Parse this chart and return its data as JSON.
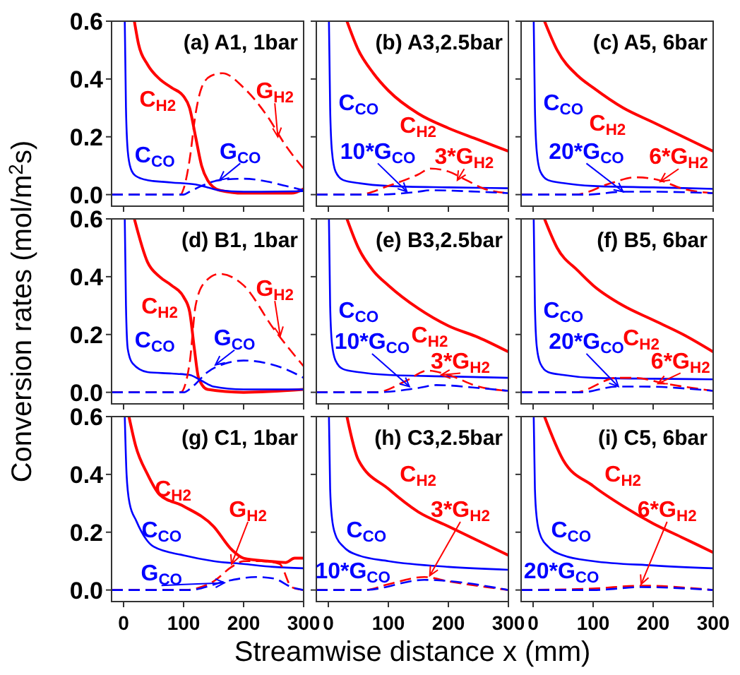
{
  "chart_data": [
    {
      "type": "line",
      "title": "(a) A1, 1bar",
      "xlim": [
        -20,
        300
      ],
      "ylim": [
        -0.04,
        0.6
      ],
      "xticks": [
        {
          "value": 0,
          "label": null
        },
        {
          "value": 100,
          "label": null
        },
        {
          "value": 200,
          "label": null
        },
        {
          "value": 300,
          "label": null
        }
      ],
      "yticks": [
        {
          "value": 0,
          "label": "0.0"
        },
        0.2,
        0.4,
        0.6
      ],
      "tick_labels": "y",
      "series": [
        {
          "color": "#ff0000",
          "line_style": "solid",
          "x": [
            18,
            25,
            40,
            60,
            80,
            100,
            110,
            120,
            130,
            140,
            160,
            200,
            280,
            300
          ],
          "values": [
            0.6,
            0.52,
            0.45,
            0.4,
            0.37,
            0.34,
            0.3,
            0.2,
            0.1,
            0.05,
            0.015,
            0.005,
            0.005,
            0.02
          ]
        },
        {
          "color": "#0000ff",
          "line_style": "solid",
          "x": [
            2,
            4,
            7,
            12,
            20,
            40,
            80,
            120,
            140,
            160,
            200,
            300
          ],
          "values": [
            0.6,
            0.3,
            0.15,
            0.09,
            0.065,
            0.05,
            0.042,
            0.035,
            0.025,
            0.015,
            0.01,
            0.012
          ]
        },
        {
          "color": "#ff0000",
          "line_style": "dashed",
          "x": [
            -20,
            95,
            100,
            110,
            120,
            130,
            145,
            165,
            200,
            240,
            270,
            300
          ],
          "values": [
            0,
            0,
            0.02,
            0.12,
            0.28,
            0.37,
            0.41,
            0.42,
            0.37,
            0.27,
            0.17,
            0.09
          ]
        },
        {
          "color": "#0000ff",
          "line_style": "dashed",
          "x": [
            -20,
            100,
            110,
            130,
            160,
            200,
            240,
            270,
            300
          ],
          "values": [
            0,
            0,
            0.01,
            0.03,
            0.05,
            0.055,
            0.045,
            0.03,
            0.015
          ]
        }
      ],
      "annotations": [
        "C$_{H2}$",
        "C$_{CO}$",
        {
          "text": "G$_{H2}$",
          "x": 257,
          "y": 0.2
        },
        {
          "text": "G$_{CO}$",
          "x": 160,
          "y": 0.05
        }
      ]
    },
    {
      "type": "line",
      "title": "(b) A3,2.5bar",
      "xlim": [
        -20,
        300
      ],
      "ylim": [
        -0.04,
        0.6
      ],
      "xticks": [
        {
          "value": 0,
          "label": null
        },
        {
          "value": 100,
          "label": null
        },
        {
          "value": 200,
          "label": null
        },
        {
          "value": 300,
          "label": null
        }
      ],
      "yticks": [
        {
          "value": 0,
          "label": null
        },
        {
          "value": 0.2,
          "label": null
        },
        {
          "value": 0.4,
          "label": null
        },
        {
          "value": 0.6,
          "label": null
        }
      ],
      "tick_labels": false,
      "series": [
        {
          "color": "#ff0000",
          "line_style": "solid",
          "x": [
            31,
            50,
            75,
            100,
            150,
            200,
            250,
            300
          ],
          "values": [
            0.6,
            0.5,
            0.42,
            0.36,
            0.28,
            0.23,
            0.19,
            0.15
          ]
        },
        {
          "color": "#0000ff",
          "line_style": "solid",
          "x": [
            1,
            3,
            6,
            12,
            25,
            50,
            100,
            200,
            300
          ],
          "values": [
            0.6,
            0.3,
            0.15,
            0.08,
            0.05,
            0.04,
            0.03,
            0.025,
            0.022
          ]
        },
        {
          "color": "#ff0000",
          "line_style": "dashed",
          "x": [
            -20,
            50,
            100,
            150,
            170,
            200,
            230,
            260,
            300
          ],
          "values": [
            0,
            0,
            0.03,
            0.07,
            0.09,
            0.08,
            0.05,
            0.02,
            0.005
          ]
        },
        {
          "color": "#0000ff",
          "line_style": "dashed",
          "x": [
            -20,
            80,
            150,
            170,
            250,
            300
          ],
          "values": [
            0,
            0,
            0.01,
            0.015,
            0.01,
            0.005
          ]
        }
      ],
      "annotations": [
        "C$_{H2}$",
        "C$_{CO}$",
        {
          "text": "3*G$_{H2}$",
          "x": 215,
          "y": 0.05
        },
        {
          "text": "10*G$_{CO}$",
          "x": 131,
          "y": 0.01
        }
      ]
    },
    {
      "type": "line",
      "title": "(c) A5, 6bar",
      "xlim": [
        -20,
        300
      ],
      "ylim": [
        -0.04,
        0.6
      ],
      "xticks": [
        {
          "value": 0,
          "label": null
        },
        {
          "value": 100,
          "label": null
        },
        {
          "value": 200,
          "label": null
        },
        {
          "value": 300,
          "label": null
        }
      ],
      "yticks": [
        {
          "value": 0,
          "label": null
        },
        {
          "value": 0.2,
          "label": null
        },
        {
          "value": 0.4,
          "label": null
        },
        {
          "value": 0.6,
          "label": null
        }
      ],
      "tick_labels": false,
      "series": [
        {
          "color": "#ff0000",
          "line_style": "solid",
          "x": [
            19,
            40,
            75,
            100,
            150,
            200,
            250,
            300
          ],
          "values": [
            0.6,
            0.5,
            0.41,
            0.37,
            0.3,
            0.25,
            0.2,
            0.15
          ]
        },
        {
          "color": "#0000ff",
          "line_style": "solid",
          "x": [
            1,
            3,
            6,
            12,
            25,
            50,
            100,
            200,
            300
          ],
          "values": [
            0.6,
            0.3,
            0.15,
            0.08,
            0.05,
            0.04,
            0.03,
            0.025,
            0.02
          ]
        },
        {
          "color": "#ff0000",
          "line_style": "dashed",
          "x": [
            -20,
            70,
            130,
            170,
            210,
            250,
            300
          ],
          "values": [
            0,
            0,
            0.04,
            0.06,
            0.05,
            0.02,
            0.005
          ]
        },
        {
          "color": "#0000ff",
          "line_style": "dashed",
          "x": [
            -20,
            90,
            150,
            200,
            300
          ],
          "values": [
            0,
            0,
            0.01,
            0.01,
            0.005
          ]
        }
      ],
      "annotations": [
        "C$_{H2}$",
        "C$_{CO}$",
        {
          "text": "6*G$_{H2}$",
          "x": 212,
          "y": 0.045
        },
        {
          "text": "20*G$_{CO}$",
          "x": 150,
          "y": 0.01
        }
      ]
    },
    {
      "type": "line",
      "title": "(d) B1, 1bar",
      "ylabel": "Conversion rates (mol/m$^{2}$s)",
      "xlim": [
        -20,
        300
      ],
      "ylim": [
        -0.04,
        0.6
      ],
      "xticks": [
        {
          "value": 0,
          "label": null
        },
        {
          "value": 100,
          "label": null
        },
        {
          "value": 200,
          "label": null
        },
        {
          "value": 300,
          "label": null
        }
      ],
      "yticks": [
        {
          "value": 0,
          "label": "0.0"
        },
        0.2,
        0.4,
        0.6
      ],
      "tick_labels": "y",
      "series": [
        {
          "color": "#ff0000",
          "line_style": "solid",
          "x": [
            18,
            40,
            60,
            80,
            100,
            110,
            118,
            125,
            140,
            200,
            300
          ],
          "values": [
            0.6,
            0.45,
            0.4,
            0.37,
            0.33,
            0.28,
            0.15,
            0.05,
            0.01,
            0,
            0.01
          ]
        },
        {
          "color": "#0000ff",
          "line_style": "solid",
          "x": [
            2,
            4,
            7,
            15,
            40,
            80,
            110,
            130,
            150,
            200,
            300
          ],
          "values": [
            0.6,
            0.3,
            0.15,
            0.1,
            0.07,
            0.065,
            0.06,
            0.04,
            0.02,
            0.01,
            0.01
          ]
        },
        {
          "color": "#ff0000",
          "line_style": "dashed",
          "x": [
            -20,
            95,
            110,
            120,
            135,
            160,
            200,
            250,
            300
          ],
          "values": [
            0,
            0,
            0.1,
            0.3,
            0.38,
            0.41,
            0.37,
            0.22,
            0.09
          ]
        },
        {
          "color": "#0000ff",
          "line_style": "dashed",
          "x": [
            -20,
            100,
            115,
            140,
            170,
            200,
            240,
            270,
            300
          ],
          "values": [
            0,
            0,
            0.02,
            0.07,
            0.1,
            0.11,
            0.1,
            0.08,
            0.05
          ]
        }
      ],
      "annotations": [
        "C$_{H2}$",
        "C$_{CO}$",
        {
          "text": "G$_{H2}$",
          "x": 261,
          "y": 0.195
        },
        {
          "text": "G$_{CO}$",
          "x": 153,
          "y": 0.095
        }
      ]
    },
    {
      "type": "line",
      "title": "(e) B3,2.5bar",
      "xlim": [
        -20,
        300
      ],
      "ylim": [
        -0.04,
        0.6
      ],
      "xticks": [
        {
          "value": 0,
          "label": null
        },
        {
          "value": 100,
          "label": null
        },
        {
          "value": 200,
          "label": null
        },
        {
          "value": 300,
          "label": null
        }
      ],
      "yticks": [
        {
          "value": 0,
          "label": null
        },
        {
          "value": 0.2,
          "label": null
        },
        {
          "value": 0.4,
          "label": null
        },
        {
          "value": 0.6,
          "label": null
        }
      ],
      "tick_labels": false,
      "series": [
        {
          "color": "#ff0000",
          "line_style": "solid",
          "x": [
            31,
            50,
            75,
            100,
            150,
            200,
            250,
            300
          ],
          "values": [
            0.6,
            0.5,
            0.42,
            0.37,
            0.29,
            0.23,
            0.19,
            0.14
          ]
        },
        {
          "color": "#0000ff",
          "line_style": "solid",
          "x": [
            1,
            3,
            6,
            12,
            25,
            50,
            100,
            200,
            300
          ],
          "values": [
            0.6,
            0.3,
            0.17,
            0.11,
            0.08,
            0.07,
            0.06,
            0.055,
            0.05
          ]
        },
        {
          "color": "#ff0000",
          "line_style": "dashed",
          "x": [
            -20,
            80,
            130,
            165,
            200,
            250,
            300
          ],
          "values": [
            0,
            0,
            0.04,
            0.075,
            0.06,
            0.02,
            0.005
          ]
        },
        {
          "color": "#0000ff",
          "line_style": "dashed",
          "x": [
            -20,
            80,
            150,
            180,
            250,
            300
          ],
          "values": [
            0,
            0,
            0.015,
            0.025,
            0.015,
            0.005
          ]
        }
      ],
      "annotations": [
        "C$_{H2}$",
        "C$_{CO}$",
        {
          "text": "3*G$_{H2}$",
          "x": 188,
          "y": 0.06
        },
        {
          "text": "10*G$_{CO}$",
          "x": 135,
          "y": 0.02
        }
      ]
    },
    {
      "type": "line",
      "title": "(f) B5, 6bar",
      "xlim": [
        -20,
        300
      ],
      "ylim": [
        -0.04,
        0.6
      ],
      "xticks": [
        {
          "value": 0,
          "label": null
        },
        {
          "value": 100,
          "label": null
        },
        {
          "value": 200,
          "label": null
        },
        {
          "value": 300,
          "label": null
        }
      ],
      "yticks": [
        {
          "value": 0,
          "label": null
        },
        {
          "value": 0.2,
          "label": null
        },
        {
          "value": 0.4,
          "label": null
        },
        {
          "value": 0.6,
          "label": null
        }
      ],
      "tick_labels": false,
      "series": [
        {
          "color": "#ff0000",
          "line_style": "solid",
          "x": [
            19,
            40,
            75,
            100,
            150,
            200,
            250,
            300
          ],
          "values": [
            0.6,
            0.5,
            0.42,
            0.37,
            0.3,
            0.25,
            0.2,
            0.14
          ]
        },
        {
          "color": "#0000ff",
          "line_style": "solid",
          "x": [
            1,
            3,
            6,
            12,
            25,
            50,
            100,
            200,
            300
          ],
          "values": [
            0.6,
            0.3,
            0.16,
            0.1,
            0.07,
            0.06,
            0.05,
            0.047,
            0.045
          ]
        },
        {
          "color": "#ff0000",
          "line_style": "dashed",
          "x": [
            -20,
            70,
            140,
            170,
            220,
            300
          ],
          "values": [
            0,
            0,
            0.05,
            0.05,
            0.03,
            0.005
          ]
        },
        {
          "color": "#0000ff",
          "line_style": "dashed",
          "x": [
            -20,
            80,
            140,
            180,
            300
          ],
          "values": [
            0,
            0,
            0.02,
            0.02,
            0.005
          ]
        }
      ],
      "annotations": [
        "C$_{H2}$",
        "C$_{CO}$",
        {
          "text": "6*G$_{H2}$",
          "x": 208,
          "y": 0.03
        },
        {
          "text": "20*G$_{CO}$",
          "x": 142,
          "y": 0.02
        }
      ]
    },
    {
      "type": "line",
      "title": "(g) C1, 1bar",
      "xlim": [
        -20,
        300
      ],
      "ylim": [
        -0.04,
        0.6
      ],
      "xticks": [
        0,
        100,
        200,
        300
      ],
      "yticks": [
        {
          "value": 0,
          "label": "0.0"
        },
        0.2,
        0.4,
        0.6
      ],
      "series": [
        {
          "color": "#ff0000",
          "line_style": "solid",
          "x": [
            9,
            20,
            40,
            60,
            100,
            150,
            180,
            200,
            240,
            270,
            285,
            300
          ],
          "values": [
            0.6,
            0.5,
            0.4,
            0.33,
            0.29,
            0.22,
            0.14,
            0.11,
            0.1,
            0.095,
            0.11,
            0.11
          ]
        },
        {
          "color": "#0000ff",
          "line_style": "solid",
          "x": [
            2,
            5,
            10,
            21,
            50,
            100,
            150,
            200,
            250,
            300
          ],
          "values": [
            0.6,
            0.4,
            0.3,
            0.24,
            0.15,
            0.12,
            0.1,
            0.09,
            0.08,
            0.075
          ]
        },
        {
          "color": "#ff0000",
          "line_style": "dashed",
          "x": [
            -20,
            100,
            150,
            180,
            200,
            230,
            260,
            280,
            300
          ],
          "values": [
            0,
            0,
            0.03,
            0.08,
            0.1,
            0.1,
            0.09,
            0.01,
            0
          ]
        },
        {
          "color": "#0000ff",
          "line_style": "dashed",
          "x": [
            -20,
            110,
            170,
            220,
            250,
            280,
            300
          ],
          "values": [
            0,
            0,
            0.03,
            0.045,
            0.04,
            0.01,
            0
          ]
        }
      ],
      "annotations": [
        "C$_{H2}$",
        "C$_{CO}$",
        {
          "text": "G$_{H2}$",
          "x": 180,
          "y": 0.09
        },
        {
          "text": "G$_{CO}$",
          "x": 168,
          "y": 0.025
        }
      ]
    },
    {
      "type": "line",
      "title": "(h) C3,2.5bar",
      "xlabel": "Streamwise distance x (mm)",
      "xlim": [
        -20,
        300
      ],
      "ylim": [
        -0.04,
        0.6
      ],
      "xticks": [
        0,
        100,
        200,
        300
      ],
      "yticks": [
        {
          "value": 0,
          "label": null
        },
        {
          "value": 0.2,
          "label": null
        },
        {
          "value": 0.4,
          "label": null
        },
        {
          "value": 0.6,
          "label": null
        }
      ],
      "tick_labels": "x",
      "series": [
        {
          "color": "#ff0000",
          "line_style": "solid",
          "x": [
            31,
            50,
            100,
            150,
            200,
            250,
            300
          ],
          "values": [
            0.6,
            0.45,
            0.35,
            0.27,
            0.22,
            0.17,
            0.12
          ]
        },
        {
          "color": "#0000ff",
          "line_style": "solid",
          "x": [
            1,
            3,
            6,
            12,
            25,
            50,
            100,
            200,
            300
          ],
          "values": [
            0.6,
            0.35,
            0.25,
            0.19,
            0.15,
            0.12,
            0.1,
            0.08,
            0.07
          ]
        },
        {
          "color": "#ff0000",
          "line_style": "dashed",
          "x": [
            -20,
            60,
            100,
            160,
            200,
            300
          ],
          "values": [
            0,
            0,
            0.02,
            0.045,
            0.03,
            0
          ]
        },
        {
          "color": "#0000ff",
          "line_style": "dashed",
          "x": [
            -20,
            60,
            160,
            300
          ],
          "values": [
            0,
            0,
            0.035,
            0
          ]
        }
      ],
      "annotations": [
        "C$_{H2}$",
        "C$_{CO}$",
        {
          "text": "3*G$_{H2}$",
          "x": 169,
          "y": 0.05
        },
        "10*G$_{CO}$"
      ]
    },
    {
      "type": "line",
      "title": "(i) C5, 6bar",
      "xlim": [
        -20,
        300
      ],
      "ylim": [
        -0.04,
        0.6
      ],
      "xticks": [
        0,
        100,
        200,
        300
      ],
      "yticks": [
        {
          "value": 0,
          "label": null
        },
        {
          "value": 0.2,
          "label": null
        },
        {
          "value": 0.4,
          "label": null
        },
        {
          "value": 0.6,
          "label": null
        }
      ],
      "tick_labels": "x",
      "series": [
        {
          "color": "#ff0000",
          "line_style": "solid",
          "x": [
            19,
            50,
            100,
            150,
            200,
            250,
            300
          ],
          "values": [
            0.6,
            0.45,
            0.36,
            0.29,
            0.23,
            0.18,
            0.13
          ]
        },
        {
          "color": "#0000ff",
          "line_style": "solid",
          "x": [
            1,
            3,
            6,
            12,
            25,
            50,
            100,
            200,
            300
          ],
          "values": [
            0.6,
            0.35,
            0.25,
            0.19,
            0.15,
            0.12,
            0.1,
            0.085,
            0.075
          ]
        },
        {
          "color": "#ff0000",
          "line_style": "dashed",
          "x": [
            -20,
            100,
            180,
            300
          ],
          "values": [
            0,
            0.005,
            0.015,
            0
          ]
        },
        {
          "color": "#0000ff",
          "line_style": "dashed",
          "x": [
            -20,
            100,
            180,
            300
          ],
          "values": [
            0,
            0,
            0.01,
            0
          ]
        }
      ],
      "annotations": [
        "C$_{H2}$",
        "C$_{CO}$",
        {
          "text": "6*G$_{H2}$",
          "x": 180,
          "y": 0.02
        },
        "20*G$_{CO}$"
      ]
    }
  ]
}
